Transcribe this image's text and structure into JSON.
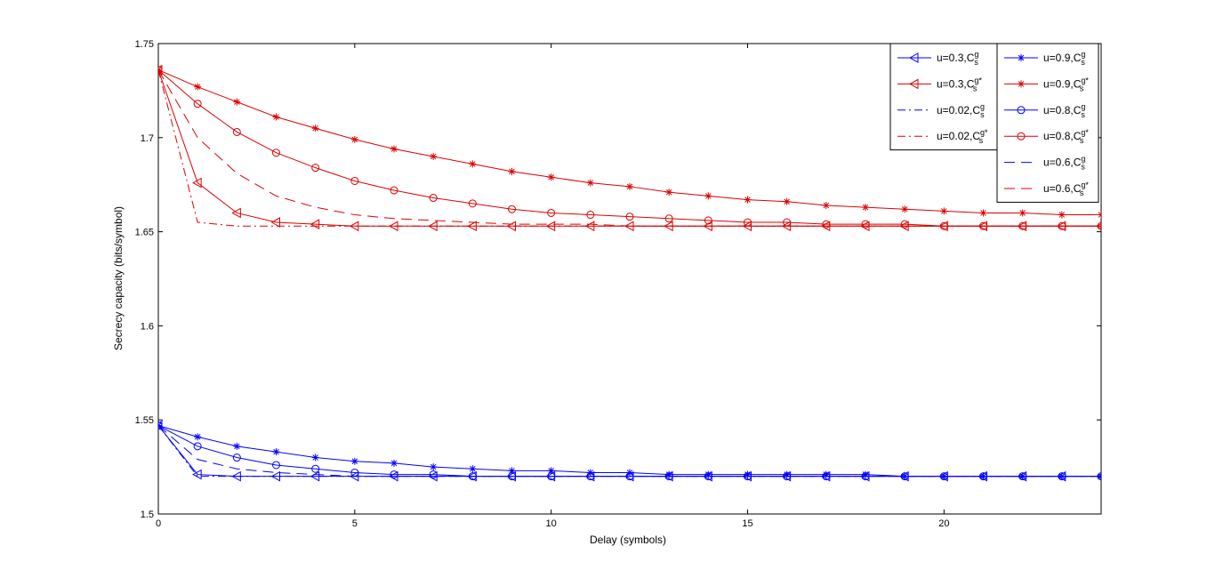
{
  "chart_data": {
    "type": "line",
    "title": "",
    "xlabel": "Delay (symbols)",
    "ylabel": "Secrecy capacity (bits/symbol)",
    "xlim": [
      0,
      24
    ],
    "ylim": [
      1.5,
      1.75
    ],
    "xticks": [
      0,
      5,
      10,
      15,
      20
    ],
    "yticks": [
      1.5,
      1.55,
      1.6,
      1.65,
      1.7,
      1.75
    ],
    "xtick_labels": [
      "0",
      "5",
      "10",
      "15",
      "20"
    ],
    "ytick_labels": [
      "1.5",
      "1.55",
      "1.6",
      "1.65",
      "1.7",
      "1.75"
    ],
    "grid": false,
    "legend_placement": "top-right",
    "colors": {
      "blue": "#0000ff",
      "red": "#dd0000"
    },
    "x": [
      0,
      1,
      2,
      3,
      4,
      5,
      6,
      7,
      8,
      9,
      10,
      11,
      12,
      13,
      14,
      15,
      16,
      17,
      18,
      19,
      20,
      21,
      22,
      23,
      24
    ],
    "series": [
      {
        "name": "u=0.3,C",
        "sup": "g",
        "star": false,
        "color": "blue",
        "style": "solid",
        "marker": "triangle-left",
        "values": [
          1.547,
          1.521,
          1.52,
          1.52,
          1.52,
          1.52,
          1.52,
          1.52,
          1.52,
          1.52,
          1.52,
          1.52,
          1.52,
          1.52,
          1.52,
          1.52,
          1.52,
          1.52,
          1.52,
          1.52,
          1.52,
          1.52,
          1.52,
          1.52,
          1.52
        ]
      },
      {
        "name": "u=0.3,C",
        "sup": "g*",
        "star": true,
        "color": "red",
        "style": "solid",
        "marker": "triangle-left",
        "values": [
          1.736,
          1.676,
          1.66,
          1.655,
          1.654,
          1.653,
          1.653,
          1.653,
          1.653,
          1.653,
          1.653,
          1.653,
          1.653,
          1.653,
          1.653,
          1.653,
          1.653,
          1.653,
          1.653,
          1.653,
          1.653,
          1.653,
          1.653,
          1.653,
          1.653
        ]
      },
      {
        "name": "u=0.02,C",
        "sup": "g",
        "star": false,
        "color": "blue",
        "style": "dashdot",
        "marker": "none",
        "values": [
          1.547,
          1.52,
          1.52,
          1.52,
          1.52,
          1.52,
          1.52,
          1.52,
          1.52,
          1.52,
          1.52,
          1.52,
          1.52,
          1.52,
          1.52,
          1.52,
          1.52,
          1.52,
          1.52,
          1.52,
          1.52,
          1.52,
          1.52,
          1.52,
          1.52
        ]
      },
      {
        "name": "u=0.02,C",
        "sup": "g*",
        "star": true,
        "color": "red",
        "style": "dashdot",
        "marker": "none",
        "values": [
          1.736,
          1.655,
          1.653,
          1.653,
          1.653,
          1.653,
          1.653,
          1.653,
          1.653,
          1.653,
          1.653,
          1.653,
          1.653,
          1.653,
          1.653,
          1.653,
          1.653,
          1.653,
          1.653,
          1.653,
          1.653,
          1.653,
          1.653,
          1.653,
          1.653
        ]
      },
      {
        "name": "u=0.9,C",
        "sup": "g",
        "star": false,
        "color": "blue",
        "style": "solid",
        "marker": "asterisk",
        "values": [
          1.547,
          1.541,
          1.536,
          1.533,
          1.53,
          1.528,
          1.527,
          1.525,
          1.524,
          1.523,
          1.523,
          1.522,
          1.522,
          1.521,
          1.521,
          1.521,
          1.521,
          1.521,
          1.521,
          1.52,
          1.52,
          1.52,
          1.52,
          1.52,
          1.52
        ]
      },
      {
        "name": "u=0.9,C",
        "sup": "g*",
        "star": true,
        "color": "red",
        "style": "solid",
        "marker": "asterisk",
        "values": [
          1.736,
          1.727,
          1.719,
          1.711,
          1.705,
          1.699,
          1.694,
          1.69,
          1.686,
          1.682,
          1.679,
          1.676,
          1.674,
          1.671,
          1.669,
          1.667,
          1.666,
          1.664,
          1.663,
          1.662,
          1.661,
          1.66,
          1.66,
          1.659,
          1.659
        ]
      },
      {
        "name": "u=0.8,C",
        "sup": "g",
        "star": false,
        "color": "blue",
        "style": "solid",
        "marker": "circle",
        "values": [
          1.547,
          1.536,
          1.53,
          1.526,
          1.524,
          1.522,
          1.521,
          1.521,
          1.52,
          1.52,
          1.52,
          1.52,
          1.52,
          1.52,
          1.52,
          1.52,
          1.52,
          1.52,
          1.52,
          1.52,
          1.52,
          1.52,
          1.52,
          1.52,
          1.52
        ]
      },
      {
        "name": "u=0.8,C",
        "sup": "g*",
        "star": true,
        "color": "red",
        "style": "solid",
        "marker": "circle",
        "values": [
          1.736,
          1.718,
          1.703,
          1.692,
          1.684,
          1.677,
          1.672,
          1.668,
          1.665,
          1.662,
          1.66,
          1.659,
          1.658,
          1.657,
          1.656,
          1.655,
          1.655,
          1.654,
          1.654,
          1.654,
          1.653,
          1.653,
          1.653,
          1.653,
          1.653
        ]
      },
      {
        "name": "u=0.6,C",
        "sup": "g",
        "star": false,
        "color": "blue",
        "style": "dashed",
        "marker": "none",
        "values": [
          1.547,
          1.529,
          1.524,
          1.522,
          1.521,
          1.52,
          1.52,
          1.52,
          1.52,
          1.52,
          1.52,
          1.52,
          1.52,
          1.52,
          1.52,
          1.52,
          1.52,
          1.52,
          1.52,
          1.52,
          1.52,
          1.52,
          1.52,
          1.52,
          1.52
        ]
      },
      {
        "name": "u=0.6,C",
        "sup": "g*",
        "star": true,
        "color": "red",
        "style": "dashed",
        "marker": "none",
        "values": [
          1.736,
          1.7,
          1.681,
          1.669,
          1.663,
          1.659,
          1.657,
          1.656,
          1.655,
          1.654,
          1.654,
          1.654,
          1.653,
          1.653,
          1.653,
          1.653,
          1.653,
          1.653,
          1.653,
          1.653,
          1.653,
          1.653,
          1.653,
          1.653,
          1.653
        ]
      }
    ],
    "legend_columns": [
      [
        0,
        1,
        2,
        3
      ],
      [
        4,
        5,
        6,
        7,
        8,
        9
      ]
    ],
    "legend_subscript": "s"
  }
}
